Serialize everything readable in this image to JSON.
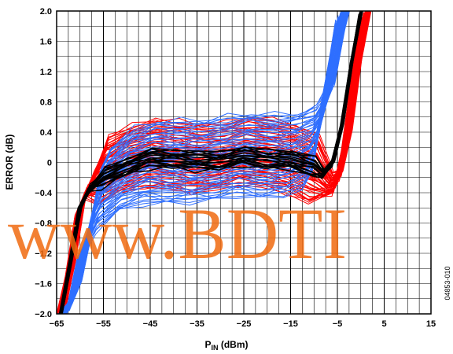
{
  "chart_data": {
    "type": "line",
    "xlabel_main": "P",
    "xlabel_sub": "IN",
    "xlabel_unit": " (dBm)",
    "ylabel": "ERROR (dB)",
    "xlim": [
      -65,
      15
    ],
    "ylim": [
      -2.0,
      2.0
    ],
    "x_ticks": [
      -65,
      -55,
      -45,
      -35,
      -25,
      -15,
      -5,
      5,
      15
    ],
    "y_ticks": [
      -2.0,
      -1.6,
      -1.2,
      -0.8,
      -0.4,
      0,
      0.4,
      0.8,
      1.2,
      1.6,
      2.0
    ],
    "x_tick_labels": [
      "−65",
      "−55",
      "−45",
      "−35",
      "−25",
      "−15",
      "−5",
      "5",
      "15"
    ],
    "y_tick_labels": [
      "−2.0",
      "−1.6",
      "−1.2",
      "−0.8",
      "−0.4",
      "0",
      "0.4",
      "0.8",
      "1.2",
      "1.6",
      "2.0"
    ],
    "grid": true,
    "figure_id": "04853-010",
    "watermark": "www.BDTI",
    "series": [
      {
        "color": "#ff0000",
        "x": [
          -64,
          -62,
          -60,
          -58,
          -55,
          -50,
          -45,
          -40,
          -35,
          -30,
          -25,
          -20,
          -15,
          -10,
          -7,
          -5,
          -3,
          -1,
          1
        ],
        "values": [
          -2.0,
          -1.4,
          -0.6,
          -0.3,
          -0.1,
          0.05,
          0.12,
          0.1,
          0.05,
          0.08,
          0.15,
          0.12,
          0.05,
          -0.1,
          -0.3,
          -0.25,
          0.3,
          1.2,
          2.0
        ]
      },
      {
        "color": "#2f6fff",
        "x": [
          -63,
          -61,
          -59,
          -57,
          -55,
          -50,
          -45,
          -40,
          -35,
          -30,
          -25,
          -20,
          -15,
          -11,
          -9,
          -7,
          -5,
          -4
        ],
        "values": [
          -2.0,
          -1.7,
          -1.1,
          -0.6,
          -0.35,
          -0.1,
          0.0,
          0.0,
          0.02,
          0.05,
          0.1,
          0.08,
          0.1,
          0.2,
          0.4,
          0.9,
          1.6,
          2.0
        ]
      },
      {
        "color": "#000000",
        "x": [
          -64,
          -62,
          -60,
          -58,
          -55,
          -50,
          -45,
          -40,
          -35,
          -30,
          -25,
          -20,
          -15,
          -10,
          -8,
          -6,
          -4,
          -2,
          0
        ],
        "values": [
          -2.0,
          -1.3,
          -0.6,
          -0.35,
          -0.2,
          -0.05,
          0.05,
          0.05,
          0.02,
          0.03,
          0.08,
          0.05,
          0.03,
          -0.05,
          -0.15,
          0.0,
          0.5,
          1.3,
          2.0
        ]
      }
    ]
  }
}
